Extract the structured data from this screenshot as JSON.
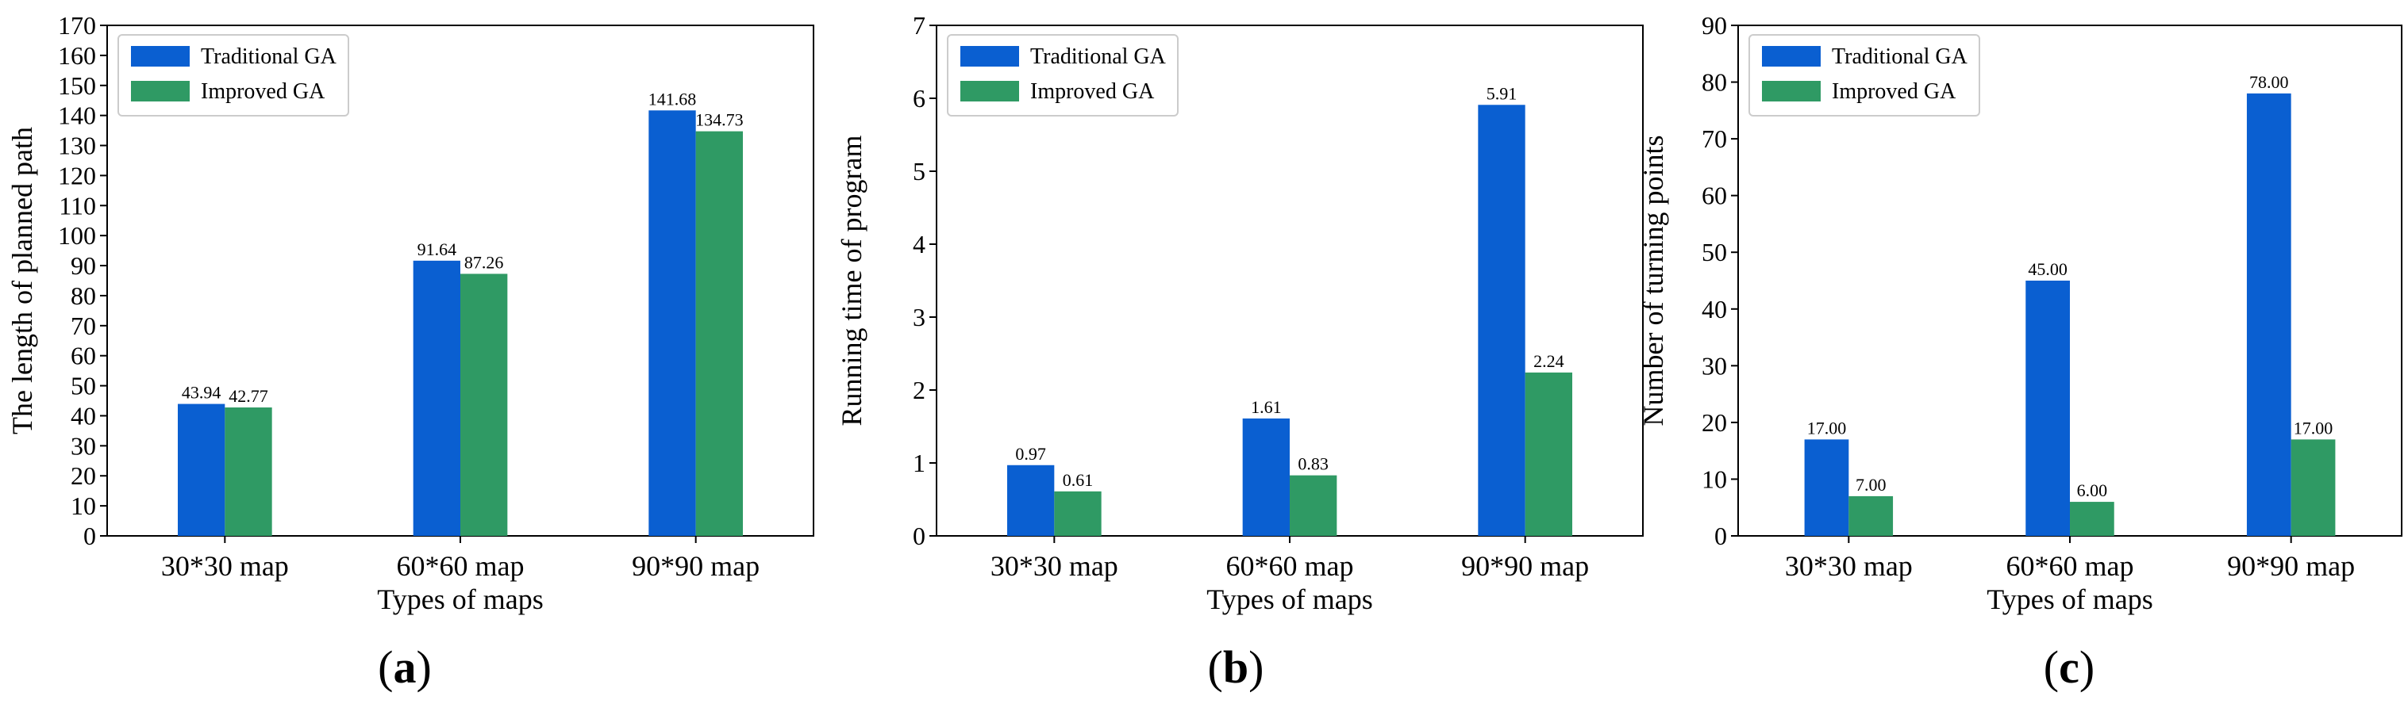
{
  "colors": {
    "traditional": "#0a5fd1",
    "improved": "#2f9a64",
    "axis": "#000000",
    "legend_border": "#cccccc"
  },
  "chart_data": [
    {
      "type": "bar",
      "panel_label": "a",
      "categories": [
        "30*30 map",
        "60*60 map",
        "90*90 map"
      ],
      "series": [
        {
          "name": "Traditional GA",
          "values": [
            43.94,
            91.64,
            141.68
          ],
          "labels": [
            "43.94",
            "91.64",
            "141.68"
          ]
        },
        {
          "name": "Improved GA",
          "values": [
            42.77,
            87.26,
            134.73
          ],
          "labels": [
            "42.77",
            "87.26",
            "134.73"
          ]
        }
      ],
      "xlabel": "Types of maps",
      "ylabel": "The length of planned path",
      "ylim": [
        0,
        170
      ],
      "yticks": [
        0,
        10,
        20,
        30,
        40,
        50,
        60,
        70,
        80,
        90,
        100,
        110,
        120,
        130,
        140,
        150,
        160,
        170
      ],
      "legend": "top-left",
      "grid": false
    },
    {
      "type": "bar",
      "panel_label": "b",
      "categories": [
        "30*30 map",
        "60*60 map",
        "90*90 map"
      ],
      "series": [
        {
          "name": "Traditional GA",
          "values": [
            0.97,
            1.61,
            5.91
          ],
          "labels": [
            "0.97",
            "1.61",
            "5.91"
          ]
        },
        {
          "name": "Improved GA",
          "values": [
            0.61,
            0.83,
            2.24
          ],
          "labels": [
            "0.61",
            "0.83",
            "2.24"
          ]
        }
      ],
      "xlabel": "Types of maps",
      "ylabel": "Running time of program",
      "ylim": [
        0,
        7
      ],
      "yticks": [
        0,
        1,
        2,
        3,
        4,
        5,
        6,
        7
      ],
      "legend": "top-left",
      "grid": false
    },
    {
      "type": "bar",
      "panel_label": "c",
      "categories": [
        "30*30 map",
        "60*60 map",
        "90*90 map"
      ],
      "series": [
        {
          "name": "Traditional GA",
          "values": [
            17,
            45,
            78
          ],
          "labels": [
            "17.00",
            "45.00",
            "78.00"
          ]
        },
        {
          "name": "Improved GA",
          "values": [
            7,
            6,
            17
          ],
          "labels": [
            "7.00",
            "6.00",
            "17.00"
          ]
        }
      ],
      "xlabel": "Types of maps",
      "ylabel": "Number of turning points",
      "ylim": [
        0,
        90
      ],
      "yticks": [
        0,
        10,
        20,
        30,
        40,
        50,
        60,
        70,
        80,
        90
      ],
      "legend": "top-left",
      "grid": false
    }
  ]
}
